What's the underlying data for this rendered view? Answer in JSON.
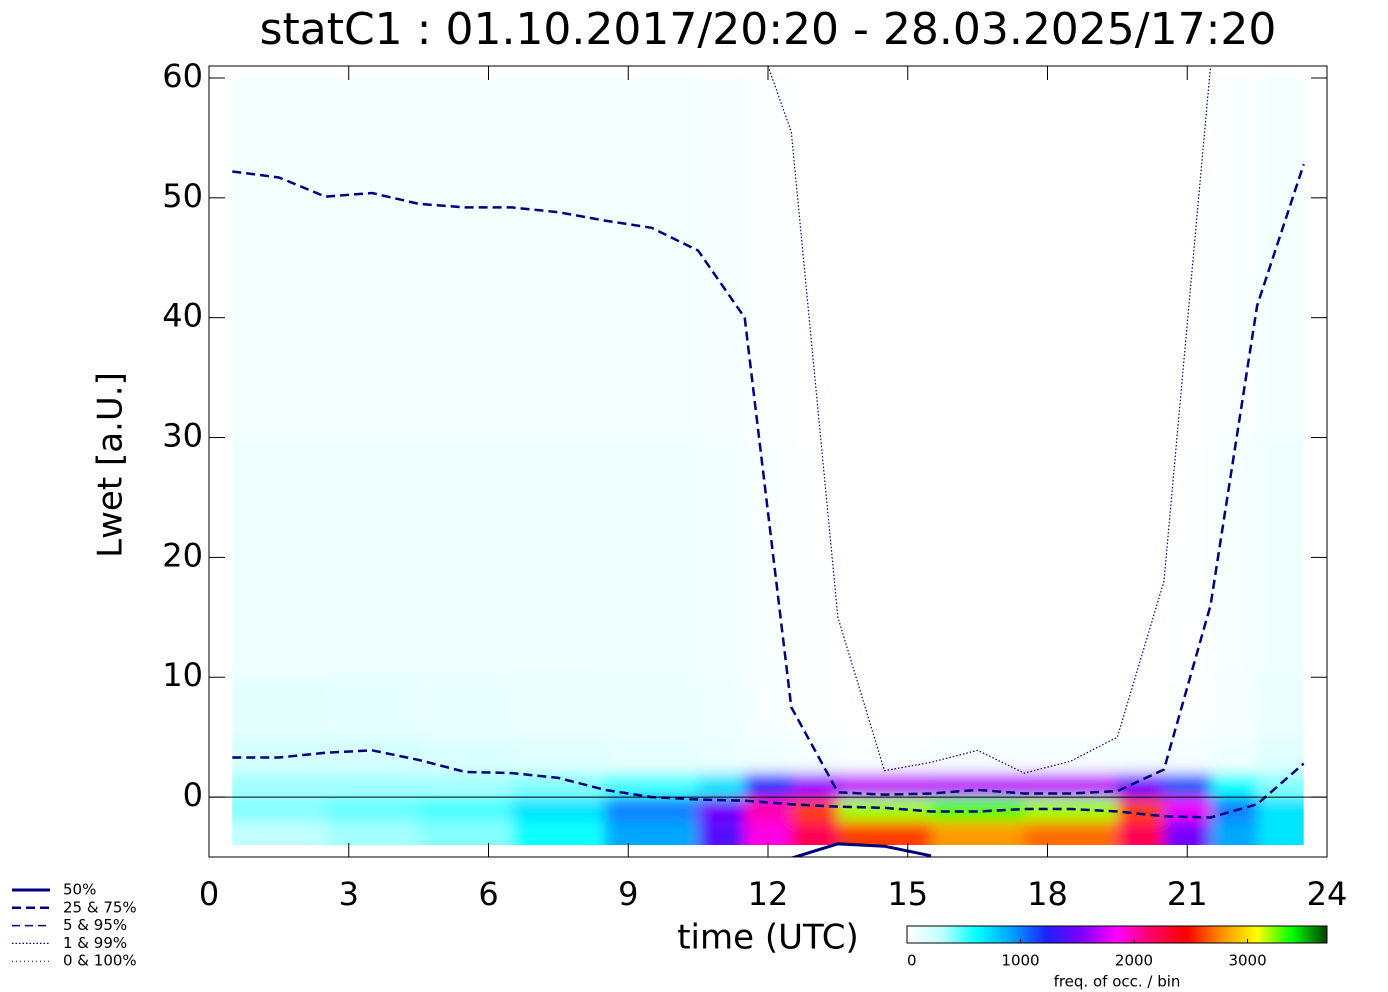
{
  "chart_data": {
    "type": "heatmap-quantiles",
    "title": "statC1 : 01.10.2017/20:20 - 28.03.2025/17:20",
    "xlabel": "time (UTC)",
    "ylabel": "Lwet [a.U.]",
    "xlim": [
      0,
      24
    ],
    "ylim": [
      -5,
      61
    ],
    "xticks": [
      0,
      3,
      6,
      9,
      12,
      15,
      18,
      21,
      24
    ],
    "yticks": [
      0,
      10,
      20,
      30,
      40,
      50,
      60
    ],
    "hline": 0,
    "x": [
      0.5,
      1.5,
      2.5,
      3.5,
      4.5,
      5.5,
      6.5,
      7.5,
      8.5,
      9.5,
      10.5,
      11.5,
      12.5,
      13.5,
      14.5,
      15.5,
      16.5,
      17.5,
      18.5,
      19.5,
      20.5,
      21.5,
      22.5,
      23.5
    ],
    "series": [
      {
        "name": "50%",
        "color": "#000080",
        "linestyle": "solid",
        "lines": [
          [
            null,
            null,
            null,
            null,
            null,
            null,
            null,
            null,
            null,
            null,
            null,
            null,
            -5.1,
            -3.9,
            -4.1,
            -4.9,
            null,
            null,
            null,
            null,
            null,
            null,
            null,
            null
          ]
        ]
      },
      {
        "name": "25 &  75%",
        "color": "#000080",
        "linestyle": "dashed",
        "lines": [
          [
            3.3,
            3.3,
            3.7,
            3.9,
            3.1,
            2.1,
            2.0,
            1.6,
            0.6,
            0.0,
            -0.2,
            -0.3,
            -0.6,
            -0.8,
            -0.9,
            -1.2,
            -1.2,
            -1.0,
            -1.0,
            -1.2,
            -1.6,
            -1.7,
            -0.6,
            2.8
          ],
          [
            52.2,
            51.7,
            50.1,
            50.4,
            49.5,
            49.2,
            49.2,
            48.8,
            48.1,
            47.5,
            45.6,
            40.0,
            7.5,
            0.4,
            0.2,
            0.3,
            0.6,
            0.3,
            0.3,
            0.5,
            2.3,
            16,
            41,
            52.8
          ]
        ]
      },
      {
        "name": "5 &  95%",
        "color": "#000080",
        "linestyle": "dashed-thin",
        "lines": []
      },
      {
        "name": "1 &  99%",
        "color": "#000080",
        "linestyle": "dotted",
        "lines": [
          [
            null,
            null,
            null,
            null,
            null,
            null,
            null,
            null,
            null,
            null,
            null,
            66.5,
            55.5,
            15,
            2.2,
            2.9,
            3.9,
            2.0,
            3.0,
            5.0,
            18,
            61,
            null,
            null
          ]
        ]
      },
      {
        "name": "0 & 100%",
        "color": "#000080",
        "linestyle": "dotted-thin",
        "lines": []
      }
    ],
    "heatmap": {
      "x_edges": [
        0.5,
        2.5,
        4.5,
        6.5,
        8.5,
        10.5,
        11.5,
        12.5,
        13.5,
        15.5,
        17.5,
        19.5,
        20.5,
        21.5,
        22.5,
        23.5
      ],
      "y_edges": [
        -4,
        -2,
        0,
        2,
        5,
        10,
        30,
        60
      ],
      "counts": [
        [
          300,
          350,
          400,
          600,
          900,
          1400,
          1900,
          2200,
          2600,
          2800,
          2700,
          2200,
          1500,
          900,
          700
        ],
        [
          400,
          450,
          500,
          700,
          1000,
          1500,
          2000,
          2600,
          3200,
          3300,
          3200,
          2600,
          1800,
          1000,
          700
        ],
        [
          350,
          350,
          350,
          400,
          500,
          700,
          1200,
          1600,
          1700,
          1700,
          1700,
          1500,
          1100,
          600,
          400
        ],
        [
          200,
          200,
          180,
          150,
          120,
          100,
          80,
          50,
          30,
          40,
          40,
          40,
          50,
          80,
          150
        ],
        [
          130,
          120,
          110,
          100,
          90,
          80,
          40,
          10,
          0,
          0,
          0,
          0,
          10,
          50,
          100
        ],
        [
          80,
          80,
          80,
          80,
          80,
          70,
          30,
          5,
          0,
          0,
          0,
          0,
          5,
          40,
          80
        ],
        [
          60,
          60,
          60,
          60,
          60,
          50,
          20,
          0,
          0,
          0,
          0,
          0,
          0,
          30,
          60
        ]
      ]
    },
    "colorbar": {
      "label": "freq. of occ. / bin",
      "lim": [
        0,
        3700
      ],
      "ticks": [
        0,
        1000,
        2000,
        3000
      ],
      "colors": [
        "#ffffff",
        "#c0ffff",
        "#00ffff",
        "#00a0ff",
        "#2020ff",
        "#8000ff",
        "#ff00ff",
        "#ff0060",
        "#ff0000",
        "#ff9000",
        "#ffff00",
        "#00ff00",
        "#004000"
      ]
    }
  }
}
